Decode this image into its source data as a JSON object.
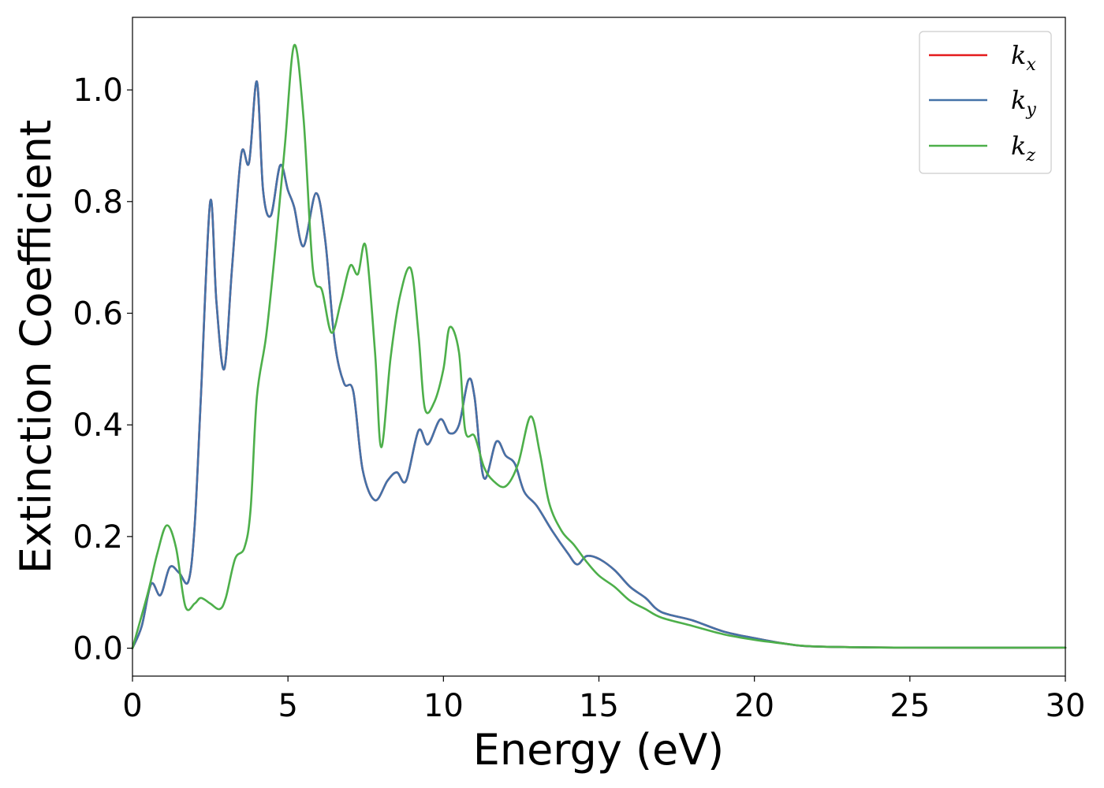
{
  "chart_data": {
    "type": "line",
    "xlabel": "Energy (eV)",
    "ylabel": "Extinction Coefficient",
    "xlim": [
      0,
      30
    ],
    "ylim": [
      -0.05,
      1.13
    ],
    "xticks": [
      0,
      5,
      10,
      15,
      20,
      25,
      30
    ],
    "xtick_labels": [
      "0",
      "5",
      "10",
      "15",
      "20",
      "25",
      "30"
    ],
    "yticks": [
      0.0,
      0.2,
      0.4,
      0.6,
      0.8,
      1.0
    ],
    "ytick_labels": [
      "0.0",
      "0.2",
      "0.4",
      "0.6",
      "0.8",
      "1.0"
    ],
    "grid": false,
    "legend_position": "top-right",
    "series": [
      {
        "name": "k_x",
        "label_main": "k",
        "label_sub": "x",
        "color": "#e41a1c",
        "x": [
          0.0,
          0.3,
          0.6,
          0.9,
          1.2,
          1.5,
          1.8,
          2.0,
          2.2,
          2.5,
          2.7,
          2.95,
          3.2,
          3.5,
          3.75,
          4.0,
          4.2,
          4.45,
          4.75,
          5.0,
          5.2,
          5.5,
          5.9,
          6.2,
          6.5,
          6.8,
          7.1,
          7.4,
          7.8,
          8.2,
          8.5,
          8.8,
          9.2,
          9.5,
          9.9,
          10.2,
          10.5,
          10.8,
          11.0,
          11.3,
          11.7,
          12.0,
          12.3,
          12.6,
          13.0,
          13.5,
          14.0,
          14.3,
          14.6,
          15.0,
          15.5,
          16.0,
          16.5,
          17.0,
          18.0,
          19.0,
          20.0,
          21.0,
          22.0,
          25.0,
          30.0
        ],
        "y": [
          0.0,
          0.04,
          0.115,
          0.095,
          0.145,
          0.135,
          0.12,
          0.22,
          0.45,
          0.8,
          0.62,
          0.5,
          0.68,
          0.885,
          0.87,
          1.015,
          0.82,
          0.775,
          0.865,
          0.82,
          0.79,
          0.72,
          0.815,
          0.73,
          0.55,
          0.475,
          0.46,
          0.32,
          0.265,
          0.3,
          0.315,
          0.3,
          0.39,
          0.365,
          0.41,
          0.385,
          0.4,
          0.48,
          0.45,
          0.305,
          0.37,
          0.345,
          0.33,
          0.28,
          0.255,
          0.21,
          0.17,
          0.15,
          0.165,
          0.16,
          0.14,
          0.11,
          0.09,
          0.065,
          0.05,
          0.03,
          0.018,
          0.008,
          0.003,
          0.001,
          0.001
        ]
      },
      {
        "name": "k_y",
        "label_main": "k",
        "label_sub": "y",
        "color": "#4472a8",
        "x": [
          0.0,
          0.3,
          0.6,
          0.9,
          1.2,
          1.5,
          1.8,
          2.0,
          2.2,
          2.5,
          2.7,
          2.95,
          3.2,
          3.5,
          3.75,
          4.0,
          4.2,
          4.45,
          4.75,
          5.0,
          5.2,
          5.5,
          5.9,
          6.2,
          6.5,
          6.8,
          7.1,
          7.4,
          7.8,
          8.2,
          8.5,
          8.8,
          9.2,
          9.5,
          9.9,
          10.2,
          10.5,
          10.8,
          11.0,
          11.3,
          11.7,
          12.0,
          12.3,
          12.6,
          13.0,
          13.5,
          14.0,
          14.3,
          14.6,
          15.0,
          15.5,
          16.0,
          16.5,
          17.0,
          18.0,
          19.0,
          20.0,
          21.0,
          22.0,
          25.0,
          30.0
        ],
        "y": [
          0.0,
          0.04,
          0.115,
          0.095,
          0.145,
          0.135,
          0.12,
          0.22,
          0.45,
          0.8,
          0.62,
          0.5,
          0.68,
          0.885,
          0.87,
          1.015,
          0.82,
          0.775,
          0.865,
          0.82,
          0.79,
          0.72,
          0.815,
          0.73,
          0.55,
          0.475,
          0.46,
          0.32,
          0.265,
          0.3,
          0.315,
          0.3,
          0.39,
          0.365,
          0.41,
          0.385,
          0.4,
          0.48,
          0.45,
          0.305,
          0.37,
          0.345,
          0.33,
          0.28,
          0.255,
          0.21,
          0.17,
          0.15,
          0.165,
          0.16,
          0.14,
          0.11,
          0.09,
          0.065,
          0.05,
          0.03,
          0.018,
          0.008,
          0.003,
          0.001,
          0.001
        ]
      },
      {
        "name": "k_z",
        "label_main": "k",
        "label_sub": "z",
        "color": "#4daf4a",
        "x": [
          0.0,
          0.5,
          0.8,
          1.1,
          1.4,
          1.7,
          2.0,
          2.2,
          2.5,
          2.8,
          3.0,
          3.3,
          3.6,
          3.8,
          4.0,
          4.3,
          4.6,
          4.9,
          5.2,
          5.5,
          5.8,
          6.1,
          6.4,
          6.7,
          7.0,
          7.25,
          7.5,
          7.8,
          8.0,
          8.3,
          8.6,
          8.95,
          9.2,
          9.4,
          9.7,
          10.0,
          10.2,
          10.5,
          10.7,
          11.0,
          11.3,
          11.6,
          12.0,
          12.4,
          12.8,
          13.1,
          13.4,
          13.8,
          14.2,
          14.6,
          15.0,
          15.5,
          16.0,
          16.5,
          17.0,
          18.0,
          19.0,
          20.0,
          21.0,
          22.0,
          25.0,
          30.0
        ],
        "y": [
          0.0,
          0.1,
          0.17,
          0.22,
          0.18,
          0.075,
          0.08,
          0.09,
          0.08,
          0.07,
          0.09,
          0.16,
          0.18,
          0.25,
          0.45,
          0.56,
          0.72,
          0.9,
          1.08,
          0.95,
          0.68,
          0.64,
          0.565,
          0.62,
          0.685,
          0.67,
          0.72,
          0.53,
          0.36,
          0.52,
          0.63,
          0.68,
          0.56,
          0.43,
          0.44,
          0.5,
          0.575,
          0.53,
          0.39,
          0.38,
          0.325,
          0.3,
          0.29,
          0.33,
          0.415,
          0.35,
          0.26,
          0.21,
          0.185,
          0.155,
          0.13,
          0.11,
          0.085,
          0.07,
          0.055,
          0.04,
          0.025,
          0.015,
          0.008,
          0.003,
          0.001,
          0.001
        ]
      }
    ]
  }
}
